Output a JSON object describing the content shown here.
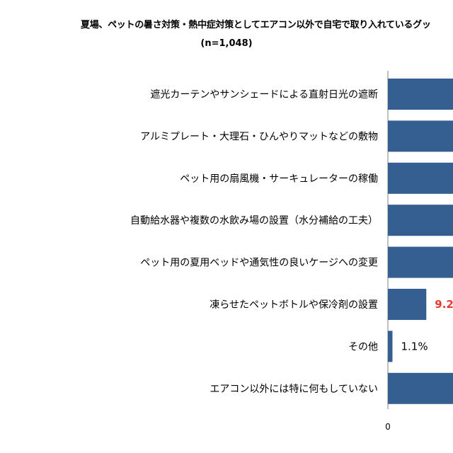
{
  "chart_data": {
    "type": "bar",
    "orientation": "horizontal",
    "title": "夏場、ペットの暑さ対策・熱中症対策としてエアコン以外で自宅で取り入れているグッ",
    "subtitle": "(n=1,048)",
    "categories": [
      "遮光カーテンやサンシェードによる直射日光の遮断",
      "アルミプレート・大理石・ひんやりマットなどの敷物",
      "ペット用の扇風機・サーキュレーターの稼働",
      "自動給水器や複数の水飲み場の設置（水分補給の工夫）",
      "ペット用の夏用ベッドや通気性の良いケージへの変更",
      "凍らせたペットボトルや保冷剤の設置",
      "その他",
      "エアコン以外には特に何もしていない"
    ],
    "values": [
      null,
      null,
      null,
      null,
      null,
      9.2,
      1.1,
      null
    ],
    "value_labels": [
      "",
      "",
      "",
      "",
      "",
      "9.2",
      "1.1%",
      ""
    ],
    "x_tick_labels": [
      "0"
    ],
    "bar_color": "#355E91",
    "highlight_label_color": "#E8382F",
    "grid": false,
    "legend": "none"
  }
}
